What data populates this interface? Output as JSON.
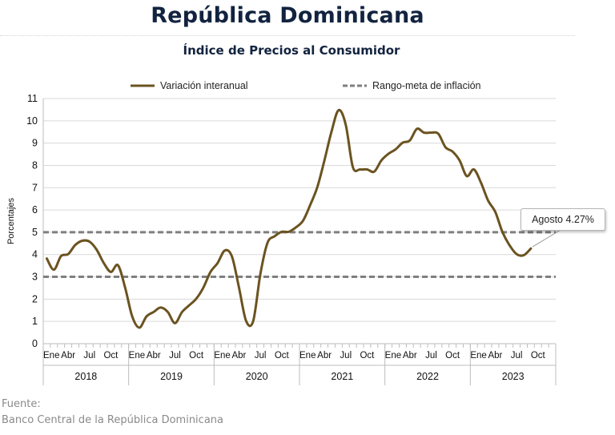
{
  "header": {
    "title": "República Dominicana",
    "subtitle": "Índice de Precios al Consumidor"
  },
  "source": {
    "label": "Fuente:",
    "text": "Banco Central de la República Dominicana"
  },
  "chart_data": {
    "type": "line",
    "ylabel": "Porcentajes",
    "ylim": [
      0,
      11
    ],
    "yticks": [
      0,
      1,
      2,
      3,
      4,
      5,
      6,
      7,
      8,
      9,
      10,
      11
    ],
    "grid": true,
    "legend_position": "top",
    "month_tick_labels": [
      "Ene",
      "Abr",
      "Jul",
      "Oct"
    ],
    "years": [
      "2018",
      "2019",
      "2020",
      "2021",
      "2022",
      "2023"
    ],
    "series": [
      {
        "name": "Variación interanual",
        "color": "#6b5320",
        "style": "solid",
        "values": [
          3.82,
          3.32,
          3.93,
          4.02,
          4.43,
          4.62,
          4.58,
          4.22,
          3.62,
          3.22,
          3.52,
          2.52,
          1.22,
          0.72,
          1.22,
          1.42,
          1.62,
          1.42,
          0.92,
          1.42,
          1.72,
          2.02,
          2.52,
          3.22,
          3.62,
          4.18,
          3.92,
          2.52,
          1.02,
          1.02,
          3.12,
          4.52,
          4.82,
          5.02,
          5.02,
          5.22,
          5.52,
          6.22,
          7.02,
          8.22,
          9.52,
          10.48,
          9.82,
          7.92,
          7.82,
          7.82,
          7.72,
          8.22,
          8.52,
          8.72,
          9.02,
          9.12,
          9.64,
          9.47,
          9.47,
          9.42,
          8.82,
          8.62,
          8.22,
          7.52,
          7.82,
          7.22,
          6.42,
          5.92,
          5.02,
          4.42,
          4.02,
          3.97,
          4.27
        ]
      },
      {
        "name": "Rango-meta de inflación",
        "color": "#7f7f7f",
        "style": "dashed",
        "bands": [
          3,
          5
        ]
      }
    ],
    "annotations": [
      {
        "text": "Agosto 4.27%",
        "target_value": 4.27
      }
    ]
  }
}
